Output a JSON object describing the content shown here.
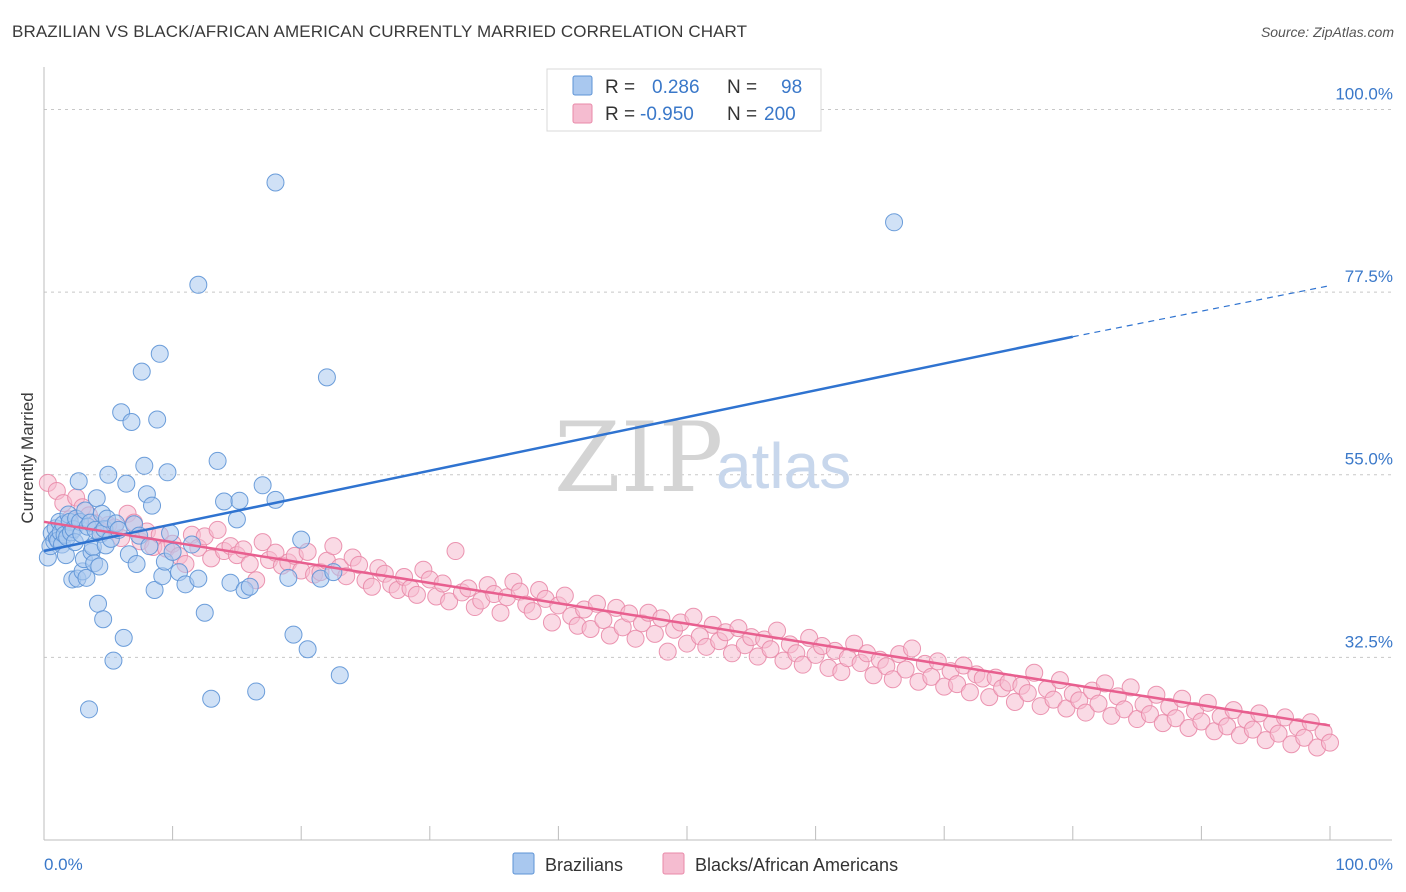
{
  "title": "BRAZILIAN VS BLACK/AFRICAN AMERICAN CURRENTLY MARRIED CORRELATION CHART",
  "source": "Source: ZipAtlas.com",
  "watermark": {
    "part1": "ZIP",
    "part2": "atlas"
  },
  "stats": [
    {
      "r_label": "R =",
      "r_value": "0.286",
      "n_label": "N =",
      "n_value": "98"
    },
    {
      "r_label": "R =",
      "r_value": "-0.950",
      "n_label": "N =",
      "n_value": "200"
    }
  ],
  "legend": [
    "Brazilians",
    "Blacks/African Americans"
  ],
  "colors": {
    "blue_fill": "#a9c8ef",
    "blue_stroke": "#5d93d6",
    "blue_line": "#2f73d0",
    "pink_fill": "#f5bcd0",
    "pink_stroke": "#e98aa9",
    "pink_line": "#e85f8f",
    "tick_text": "#3a78c9",
    "grid": "#c8c8c8"
  },
  "chart_data": {
    "type": "scatter",
    "title": "BRAZILIAN VS BLACK/AFRICAN AMERICAN CURRENTLY MARRIED CORRELATION CHART",
    "xlabel": "",
    "ylabel": "Currently Married",
    "xlim": [
      0,
      100
    ],
    "ylim": [
      10,
      104
    ],
    "x_tick_labels": [
      "0.0%",
      "100.0%"
    ],
    "y_ticks": [
      32.5,
      55.0,
      77.5,
      100.0
    ],
    "y_tick_labels": [
      "32.5%",
      "55.0%",
      "77.5%",
      "100.0%"
    ],
    "grid": true,
    "legend_position": "bottom",
    "series": [
      {
        "name": "Brazilians",
        "trend": {
          "x0": 0,
          "y0": 45.6,
          "x1": 80,
          "y1": 72.0,
          "dash_to_x": 100,
          "dash_to_y": 78.3
        },
        "points": [
          [
            0.3,
            44.8
          ],
          [
            0.5,
            46.2
          ],
          [
            0.6,
            47.8
          ],
          [
            0.8,
            46.8
          ],
          [
            0.9,
            48.4
          ],
          [
            1.0,
            47.2
          ],
          [
            1.1,
            46.9
          ],
          [
            1.2,
            49.2
          ],
          [
            1.3,
            47.9
          ],
          [
            1.4,
            46.4
          ],
          [
            1.5,
            48.9
          ],
          [
            1.6,
            47.6
          ],
          [
            1.7,
            45.1
          ],
          [
            1.8,
            47.3
          ],
          [
            1.9,
            50.1
          ],
          [
            2.0,
            49.2
          ],
          [
            2.1,
            47.9
          ],
          [
            2.2,
            42.1
          ],
          [
            2.3,
            48.3
          ],
          [
            2.4,
            46.7
          ],
          [
            2.5,
            49.6
          ],
          [
            2.6,
            42.2
          ],
          [
            2.7,
            54.2
          ],
          [
            2.8,
            49.2
          ],
          [
            2.9,
            47.7
          ],
          [
            3.0,
            43.1
          ],
          [
            3.1,
            44.6
          ],
          [
            3.2,
            50.6
          ],
          [
            3.3,
            42.3
          ],
          [
            3.4,
            48.6
          ],
          [
            3.5,
            26.1
          ],
          [
            3.6,
            49.1
          ],
          [
            3.7,
            45.5
          ],
          [
            3.8,
            46.1
          ],
          [
            3.9,
            44.1
          ],
          [
            4.0,
            48.2
          ],
          [
            4.1,
            52.1
          ],
          [
            4.2,
            39.1
          ],
          [
            4.3,
            43.7
          ],
          [
            4.4,
            47.7
          ],
          [
            4.5,
            50.2
          ],
          [
            4.6,
            37.2
          ],
          [
            4.7,
            48.3
          ],
          [
            4.8,
            46.3
          ],
          [
            4.9,
            49.6
          ],
          [
            5.0,
            55.0
          ],
          [
            5.2,
            47.1
          ],
          [
            5.4,
            32.1
          ],
          [
            5.6,
            49.0
          ],
          [
            5.8,
            48.2
          ],
          [
            6.0,
            62.7
          ],
          [
            6.2,
            34.9
          ],
          [
            6.4,
            53.9
          ],
          [
            6.6,
            45.2
          ],
          [
            6.8,
            61.5
          ],
          [
            7.0,
            48.9
          ],
          [
            7.2,
            44.0
          ],
          [
            7.4,
            47.5
          ],
          [
            7.6,
            67.7
          ],
          [
            7.8,
            56.1
          ],
          [
            8.0,
            52.6
          ],
          [
            8.2,
            46.2
          ],
          [
            8.4,
            51.2
          ],
          [
            8.6,
            40.8
          ],
          [
            8.8,
            61.8
          ],
          [
            9.0,
            69.9
          ],
          [
            9.2,
            42.5
          ],
          [
            9.4,
            44.3
          ],
          [
            9.6,
            55.3
          ],
          [
            9.8,
            47.8
          ],
          [
            10.0,
            45.5
          ],
          [
            10.5,
            43.0
          ],
          [
            11.0,
            41.5
          ],
          [
            11.5,
            46.4
          ],
          [
            12.0,
            42.2
          ],
          [
            12.5,
            38.0
          ],
          [
            13.0,
            27.4
          ],
          [
            13.5,
            56.7
          ],
          [
            14.0,
            51.7
          ],
          [
            14.5,
            41.7
          ],
          [
            15.0,
            49.5
          ],
          [
            15.2,
            51.8
          ],
          [
            15.6,
            40.8
          ],
          [
            16.0,
            41.2
          ],
          [
            16.5,
            28.3
          ],
          [
            17.0,
            53.7
          ],
          [
            18.0,
            51.9
          ],
          [
            19.0,
            42.3
          ],
          [
            19.4,
            35.3
          ],
          [
            20.0,
            47.0
          ],
          [
            20.5,
            33.5
          ],
          [
            12.0,
            78.4
          ],
          [
            66.1,
            86.1
          ],
          [
            18.0,
            91.0
          ],
          [
            21.5,
            42.2
          ],
          [
            22.0,
            67.0
          ],
          [
            22.5,
            43.0
          ],
          [
            23.0,
            30.3
          ]
        ]
      },
      {
        "name": "Blacks/African Americans",
        "trend": {
          "x0": 0,
          "y0": 49.2,
          "x1": 100,
          "y1": 24.1
        },
        "points": [
          [
            0.3,
            54.0
          ],
          [
            1.0,
            53.0
          ],
          [
            1.5,
            51.5
          ],
          [
            2.0,
            49.5
          ],
          [
            2.5,
            52.2
          ],
          [
            3.0,
            51.0
          ],
          [
            3.5,
            50.0
          ],
          [
            4.0,
            49.0
          ],
          [
            4.5,
            48.0
          ],
          [
            5.0,
            48.8
          ],
          [
            5.5,
            48.5
          ],
          [
            6.0,
            47.2
          ],
          [
            6.5,
            50.2
          ],
          [
            7.0,
            49.1
          ],
          [
            7.5,
            46.8
          ],
          [
            8.0,
            48.0
          ],
          [
            8.5,
            46.1
          ],
          [
            9.0,
            47.6
          ],
          [
            9.5,
            45.9
          ],
          [
            10.0,
            46.5
          ],
          [
            10.5,
            45.0
          ],
          [
            11.0,
            44.0
          ],
          [
            11.5,
            47.6
          ],
          [
            12.0,
            46.0
          ],
          [
            12.5,
            47.4
          ],
          [
            13.0,
            44.7
          ],
          [
            13.5,
            48.2
          ],
          [
            14.0,
            45.6
          ],
          [
            14.5,
            46.2
          ],
          [
            15.0,
            45.1
          ],
          [
            15.5,
            45.8
          ],
          [
            16.0,
            44.0
          ],
          [
            16.5,
            42.0
          ],
          [
            17.0,
            46.7
          ],
          [
            17.5,
            44.5
          ],
          [
            18.0,
            45.4
          ],
          [
            18.5,
            43.8
          ],
          [
            19.0,
            44.2
          ],
          [
            19.5,
            45.0
          ],
          [
            20.0,
            43.2
          ],
          [
            20.5,
            45.5
          ],
          [
            21.0,
            42.7
          ],
          [
            21.5,
            43.0
          ],
          [
            22.0,
            44.4
          ],
          [
            22.5,
            46.2
          ],
          [
            23.0,
            43.6
          ],
          [
            23.5,
            42.5
          ],
          [
            24.0,
            44.8
          ],
          [
            24.5,
            43.9
          ],
          [
            25.0,
            42.0
          ],
          [
            25.5,
            41.2
          ],
          [
            26.0,
            43.5
          ],
          [
            26.5,
            42.8
          ],
          [
            27.0,
            41.5
          ],
          [
            27.5,
            40.8
          ],
          [
            28.0,
            42.4
          ],
          [
            28.5,
            41.0
          ],
          [
            29.0,
            40.2
          ],
          [
            29.5,
            43.3
          ],
          [
            30.0,
            42.1
          ],
          [
            30.5,
            40.0
          ],
          [
            31.0,
            41.6
          ],
          [
            31.5,
            39.4
          ],
          [
            32.0,
            45.6
          ],
          [
            32.5,
            40.5
          ],
          [
            33.0,
            41.0
          ],
          [
            33.5,
            38.7
          ],
          [
            34.0,
            39.5
          ],
          [
            34.5,
            41.4
          ],
          [
            35.0,
            40.3
          ],
          [
            35.5,
            38.0
          ],
          [
            36.0,
            39.9
          ],
          [
            36.5,
            41.8
          ],
          [
            37.0,
            40.6
          ],
          [
            37.5,
            39.0
          ],
          [
            38.0,
            38.2
          ],
          [
            38.5,
            40.8
          ],
          [
            39.0,
            39.7
          ],
          [
            39.5,
            36.8
          ],
          [
            40.0,
            38.9
          ],
          [
            40.5,
            40.1
          ],
          [
            41.0,
            37.6
          ],
          [
            41.5,
            36.4
          ],
          [
            42.0,
            38.4
          ],
          [
            42.5,
            36.0
          ],
          [
            43.0,
            39.1
          ],
          [
            43.5,
            37.1
          ],
          [
            44.0,
            35.2
          ],
          [
            44.5,
            38.6
          ],
          [
            45.0,
            36.2
          ],
          [
            45.5,
            37.9
          ],
          [
            46.0,
            34.8
          ],
          [
            46.5,
            36.7
          ],
          [
            47.0,
            38.0
          ],
          [
            47.5,
            35.4
          ],
          [
            48.0,
            37.3
          ],
          [
            48.5,
            33.2
          ],
          [
            49.0,
            35.9
          ],
          [
            49.5,
            36.8
          ],
          [
            50.0,
            34.2
          ],
          [
            50.5,
            37.5
          ],
          [
            51.0,
            35.1
          ],
          [
            51.5,
            33.8
          ],
          [
            52.0,
            36.5
          ],
          [
            52.5,
            34.5
          ],
          [
            53.0,
            35.6
          ],
          [
            53.5,
            33.0
          ],
          [
            54.0,
            36.1
          ],
          [
            54.5,
            34.0
          ],
          [
            55.0,
            35.0
          ],
          [
            55.5,
            32.6
          ],
          [
            56.0,
            34.7
          ],
          [
            56.5,
            33.5
          ],
          [
            57.0,
            35.8
          ],
          [
            57.5,
            32.1
          ],
          [
            58.0,
            34.1
          ],
          [
            58.5,
            33.0
          ],
          [
            59.0,
            31.6
          ],
          [
            59.5,
            34.9
          ],
          [
            60.0,
            32.8
          ],
          [
            60.5,
            33.9
          ],
          [
            61.0,
            31.2
          ],
          [
            61.5,
            33.3
          ],
          [
            62.0,
            30.7
          ],
          [
            62.5,
            32.4
          ],
          [
            63.0,
            34.2
          ],
          [
            63.5,
            31.8
          ],
          [
            64.0,
            33.0
          ],
          [
            64.5,
            30.3
          ],
          [
            65.0,
            32.2
          ],
          [
            65.5,
            31.4
          ],
          [
            66.0,
            29.8
          ],
          [
            66.5,
            32.9
          ],
          [
            67.0,
            31.0
          ],
          [
            67.5,
            33.6
          ],
          [
            68.0,
            29.5
          ],
          [
            68.5,
            31.7
          ],
          [
            69.0,
            30.1
          ],
          [
            69.5,
            32.0
          ],
          [
            70.0,
            28.9
          ],
          [
            70.5,
            30.8
          ],
          [
            71.0,
            29.2
          ],
          [
            71.5,
            31.5
          ],
          [
            72.0,
            28.2
          ],
          [
            72.5,
            30.4
          ],
          [
            73.0,
            29.9
          ],
          [
            73.5,
            27.6
          ],
          [
            74.0,
            30.0
          ],
          [
            74.5,
            28.7
          ],
          [
            75.0,
            29.4
          ],
          [
            75.5,
            27.0
          ],
          [
            76.0,
            29.0
          ],
          [
            76.5,
            28.1
          ],
          [
            77.0,
            30.6
          ],
          [
            77.5,
            26.5
          ],
          [
            78.0,
            28.6
          ],
          [
            78.5,
            27.3
          ],
          [
            79.0,
            29.7
          ],
          [
            79.5,
            26.2
          ],
          [
            80.0,
            28.0
          ],
          [
            80.5,
            27.2
          ],
          [
            81.0,
            25.7
          ],
          [
            81.5,
            28.4
          ],
          [
            82.0,
            26.8
          ],
          [
            82.5,
            29.3
          ],
          [
            83.0,
            25.3
          ],
          [
            83.5,
            27.7
          ],
          [
            84.0,
            26.1
          ],
          [
            84.5,
            28.8
          ],
          [
            85.0,
            24.9
          ],
          [
            85.5,
            26.7
          ],
          [
            86.0,
            25.5
          ],
          [
            86.5,
            27.9
          ],
          [
            87.0,
            24.4
          ],
          [
            87.5,
            26.4
          ],
          [
            88.0,
            25.0
          ],
          [
            88.5,
            27.4
          ],
          [
            89.0,
            23.8
          ],
          [
            89.5,
            25.9
          ],
          [
            90.0,
            24.6
          ],
          [
            90.5,
            26.9
          ],
          [
            91.0,
            23.4
          ],
          [
            91.5,
            25.2
          ],
          [
            92.0,
            24.0
          ],
          [
            92.5,
            26.0
          ],
          [
            93.0,
            22.9
          ],
          [
            93.5,
            24.8
          ],
          [
            94.0,
            23.6
          ],
          [
            94.5,
            25.6
          ],
          [
            95.0,
            22.3
          ],
          [
            95.5,
            24.3
          ],
          [
            96.0,
            23.1
          ],
          [
            96.5,
            25.1
          ],
          [
            97.0,
            21.8
          ],
          [
            97.5,
            23.9
          ],
          [
            98.0,
            22.6
          ],
          [
            98.5,
            24.5
          ],
          [
            99.0,
            21.4
          ],
          [
            99.5,
            23.3
          ],
          [
            100.0,
            22.0
          ]
        ]
      }
    ]
  }
}
